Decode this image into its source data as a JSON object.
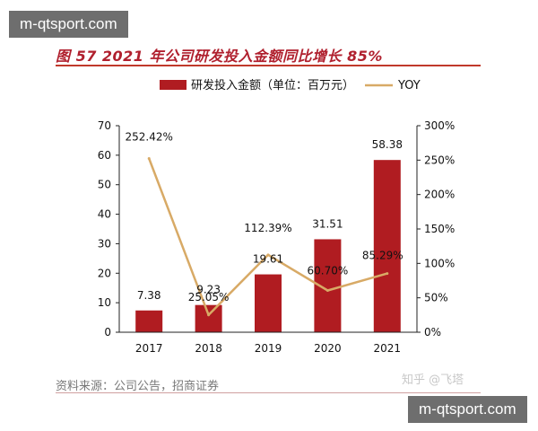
{
  "watermark": {
    "top": "m-qtsport.com",
    "bottom": "m-qtsport.com"
  },
  "figure_title": "图 57 2021 年公司研发投入金额同比增长 85%",
  "source": "资料来源：公司公告，招商证券",
  "credit": "知乎 @飞塔",
  "colors": {
    "bar": "#b01c21",
    "line": "#d8aa66",
    "title": "#b0202e"
  },
  "chart_data": {
    "type": "bar",
    "title": "",
    "categories": [
      "2017",
      "2018",
      "2019",
      "2020",
      "2021"
    ],
    "series": [
      {
        "name": "研发投入金额（单位：百万元）",
        "type": "bar",
        "axis": "left",
        "values": [
          7.38,
          9.23,
          19.61,
          31.51,
          58.38
        ],
        "labels": [
          "7.38",
          "9.23",
          "19.61",
          "31.51",
          "58.38"
        ]
      },
      {
        "name": "YOY",
        "type": "line",
        "axis": "right",
        "values": [
          252.42,
          25.05,
          112.39,
          60.7,
          85.29
        ],
        "labels": [
          "252.42%",
          "25.05%",
          "112.39%",
          "60.70%",
          "85.29%"
        ]
      }
    ],
    "y_left": {
      "ticks": [
        "0",
        "10",
        "20",
        "30",
        "40",
        "50",
        "60",
        "70"
      ],
      "min": 0,
      "max": 70
    },
    "y_right": {
      "ticks": [
        "0%",
        "50%",
        "100%",
        "150%",
        "200%",
        "250%",
        "300%"
      ],
      "min": 0,
      "max": 300
    },
    "legend_position": "top",
    "grid": false
  }
}
